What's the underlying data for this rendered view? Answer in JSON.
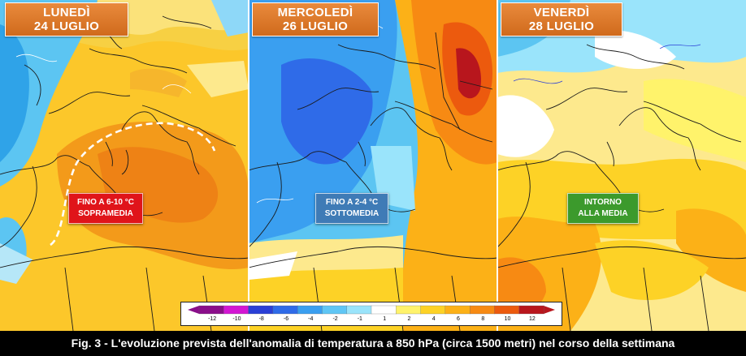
{
  "panels": [
    {
      "day": "LUNEDÌ",
      "date": "24 LUGLIO",
      "callout_line1": "FINO A 6-10 °C",
      "callout_line2": "SOPRAMEDIA",
      "callout_color": "#e0141a"
    },
    {
      "day": "MERCOLEDÌ",
      "date": "26 LUGLIO",
      "callout_line1": "FINO A 2-4 °C",
      "callout_line2": "SOTTOMEDIA",
      "callout_color": "#3f7bb6"
    },
    {
      "day": "VENERDÌ",
      "date": "28 LUGLIO",
      "callout_line1": "INTORNO",
      "callout_line2": "ALLA MEDIA",
      "callout_color": "#3c9a2c"
    }
  ],
  "legend": {
    "ticks": [
      "-12",
      "-10",
      "-8",
      "-6",
      "-4",
      "-2",
      "-1",
      "1",
      "2",
      "4",
      "6",
      "8",
      "10",
      "12"
    ],
    "colors": [
      "#8a0e8a",
      "#d316d3",
      "#2a3fd6",
      "#2f6be8",
      "#3a9ff0",
      "#5fc6f5",
      "#9ae4fb",
      "#ffffff",
      "#fff36b",
      "#fdd226",
      "#fcb117",
      "#f78a13",
      "#ec5a0e",
      "#b8161d"
    ]
  },
  "caption": "Fig. 3 - L'evoluzione prevista dell'anomalia di temperatura a 850 hPa (circa 1500 metri) nel corso della settimana"
}
